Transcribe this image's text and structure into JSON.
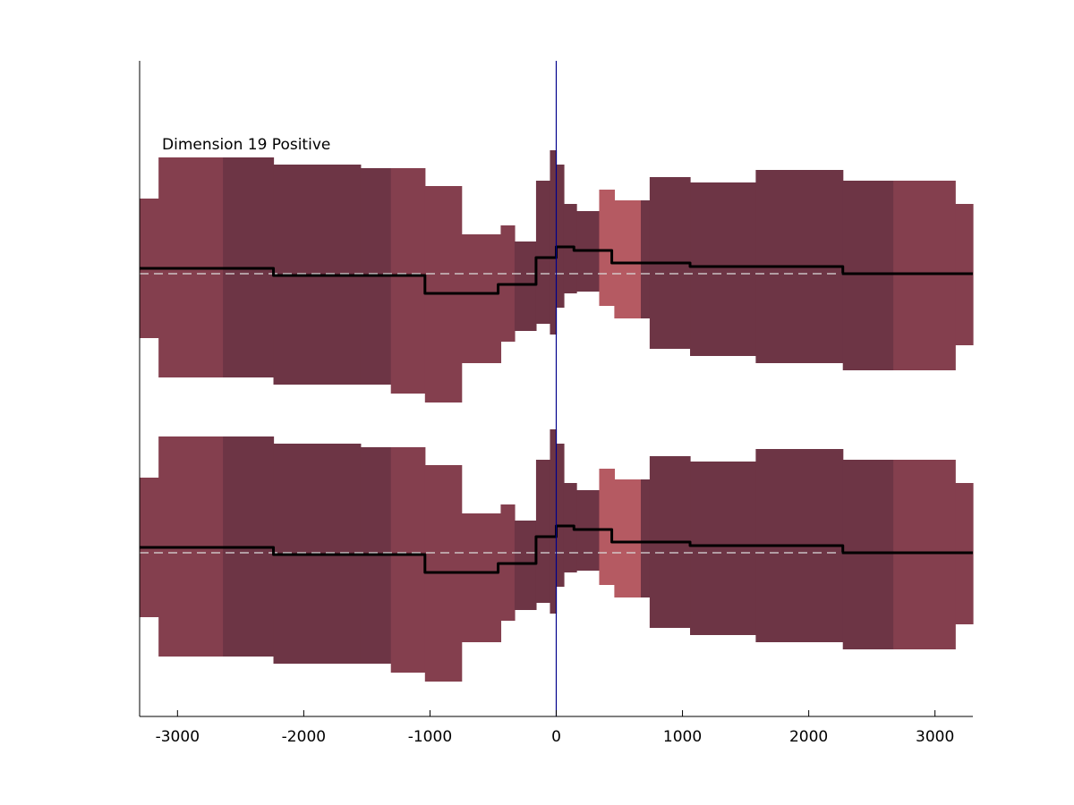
{
  "chart_data": {
    "type": "area",
    "annotation": "Dimension 19 Positive",
    "xlim": [
      -3300,
      3300
    ],
    "xticks": [
      -3000,
      -2000,
      -1000,
      0,
      1000,
      2000,
      3000
    ],
    "xtick_labels": [
      "-3000",
      "-2000",
      "-1000",
      "0",
      "1000",
      "2000",
      "3000"
    ],
    "vline_x": 0,
    "colors": {
      "band_light": "#843f4e",
      "band_dark": "#6d3545",
      "band_highlight": "#b55a62",
      "mean_line": "#000000",
      "zero_line": "#dcdcdc",
      "vline": "#00008b",
      "axis": "#000000"
    },
    "band_segments": [
      {
        "x0": -3300,
        "x1": -3150,
        "upper": 2.1,
        "lower": -1.8,
        "shade": "light"
      },
      {
        "x0": -3150,
        "x1": -2640,
        "upper": 3.25,
        "lower": -2.9,
        "shade": "light"
      },
      {
        "x0": -2640,
        "x1": -2240,
        "upper": 3.25,
        "lower": -2.9,
        "shade": "dark"
      },
      {
        "x0": -2240,
        "x1": -1550,
        "upper": 3.05,
        "lower": -3.1,
        "shade": "dark"
      },
      {
        "x0": -1550,
        "x1": -1310,
        "upper": 2.95,
        "lower": -3.1,
        "shade": "dark"
      },
      {
        "x0": -1310,
        "x1": -1040,
        "upper": 2.95,
        "lower": -3.35,
        "shade": "light"
      },
      {
        "x0": -1040,
        "x1": -750,
        "upper": 2.45,
        "lower": -3.6,
        "shade": "light"
      },
      {
        "x0": -750,
        "x1": -440,
        "upper": 1.1,
        "lower": -2.5,
        "shade": "light"
      },
      {
        "x0": -440,
        "x1": -330,
        "upper": 1.35,
        "lower": -1.9,
        "shade": "light"
      },
      {
        "x0": -330,
        "x1": -160,
        "upper": 0.9,
        "lower": -1.6,
        "shade": "dark"
      },
      {
        "x0": -160,
        "x1": -50,
        "upper": 2.6,
        "lower": -1.4,
        "shade": "dark"
      },
      {
        "x0": -50,
        "x1": 0,
        "upper": 3.45,
        "lower": -1.7,
        "shade": "dark"
      },
      {
        "x0": 0,
        "x1": 60,
        "upper": 3.05,
        "lower": -0.95,
        "shade": "dark"
      },
      {
        "x0": 60,
        "x1": 160,
        "upper": 1.95,
        "lower": -0.55,
        "shade": "dark"
      },
      {
        "x0": 160,
        "x1": 340,
        "upper": 1.75,
        "lower": -0.5,
        "shade": "dark"
      },
      {
        "x0": 340,
        "x1": 460,
        "upper": 2.35,
        "lower": -0.9,
        "shade": "highlight"
      },
      {
        "x0": 460,
        "x1": 670,
        "upper": 2.05,
        "lower": -1.25,
        "shade": "highlight"
      },
      {
        "x0": 670,
        "x1": 740,
        "upper": 2.05,
        "lower": -1.25,
        "shade": "dark"
      },
      {
        "x0": 740,
        "x1": 1060,
        "upper": 2.7,
        "lower": -2.1,
        "shade": "dark"
      },
      {
        "x0": 1060,
        "x1": 1580,
        "upper": 2.55,
        "lower": -2.3,
        "shade": "dark"
      },
      {
        "x0": 1580,
        "x1": 2270,
        "upper": 2.9,
        "lower": -2.5,
        "shade": "dark"
      },
      {
        "x0": 2270,
        "x1": 2670,
        "upper": 2.6,
        "lower": -2.7,
        "shade": "dark"
      },
      {
        "x0": 2670,
        "x1": 3160,
        "upper": 2.6,
        "lower": -2.7,
        "shade": "light"
      },
      {
        "x0": 3160,
        "x1": 3300,
        "upper": 1.95,
        "lower": -2.0,
        "shade": "light"
      }
    ],
    "mean_steps": [
      {
        "x0": -3300,
        "x1": -2240,
        "y": 0.15
      },
      {
        "x0": -2240,
        "x1": -1040,
        "y": -0.05
      },
      {
        "x0": -1040,
        "x1": -460,
        "y": -0.55
      },
      {
        "x0": -460,
        "x1": -160,
        "y": -0.3
      },
      {
        "x0": -160,
        "x1": 0,
        "y": 0.45
      },
      {
        "x0": 0,
        "x1": 140,
        "y": 0.75
      },
      {
        "x0": 140,
        "x1": 440,
        "y": 0.65
      },
      {
        "x0": 440,
        "x1": 1060,
        "y": 0.3
      },
      {
        "x0": 1060,
        "x1": 2270,
        "y": 0.2
      },
      {
        "x0": 2270,
        "x1": 3300,
        "y": 0.0
      }
    ]
  }
}
